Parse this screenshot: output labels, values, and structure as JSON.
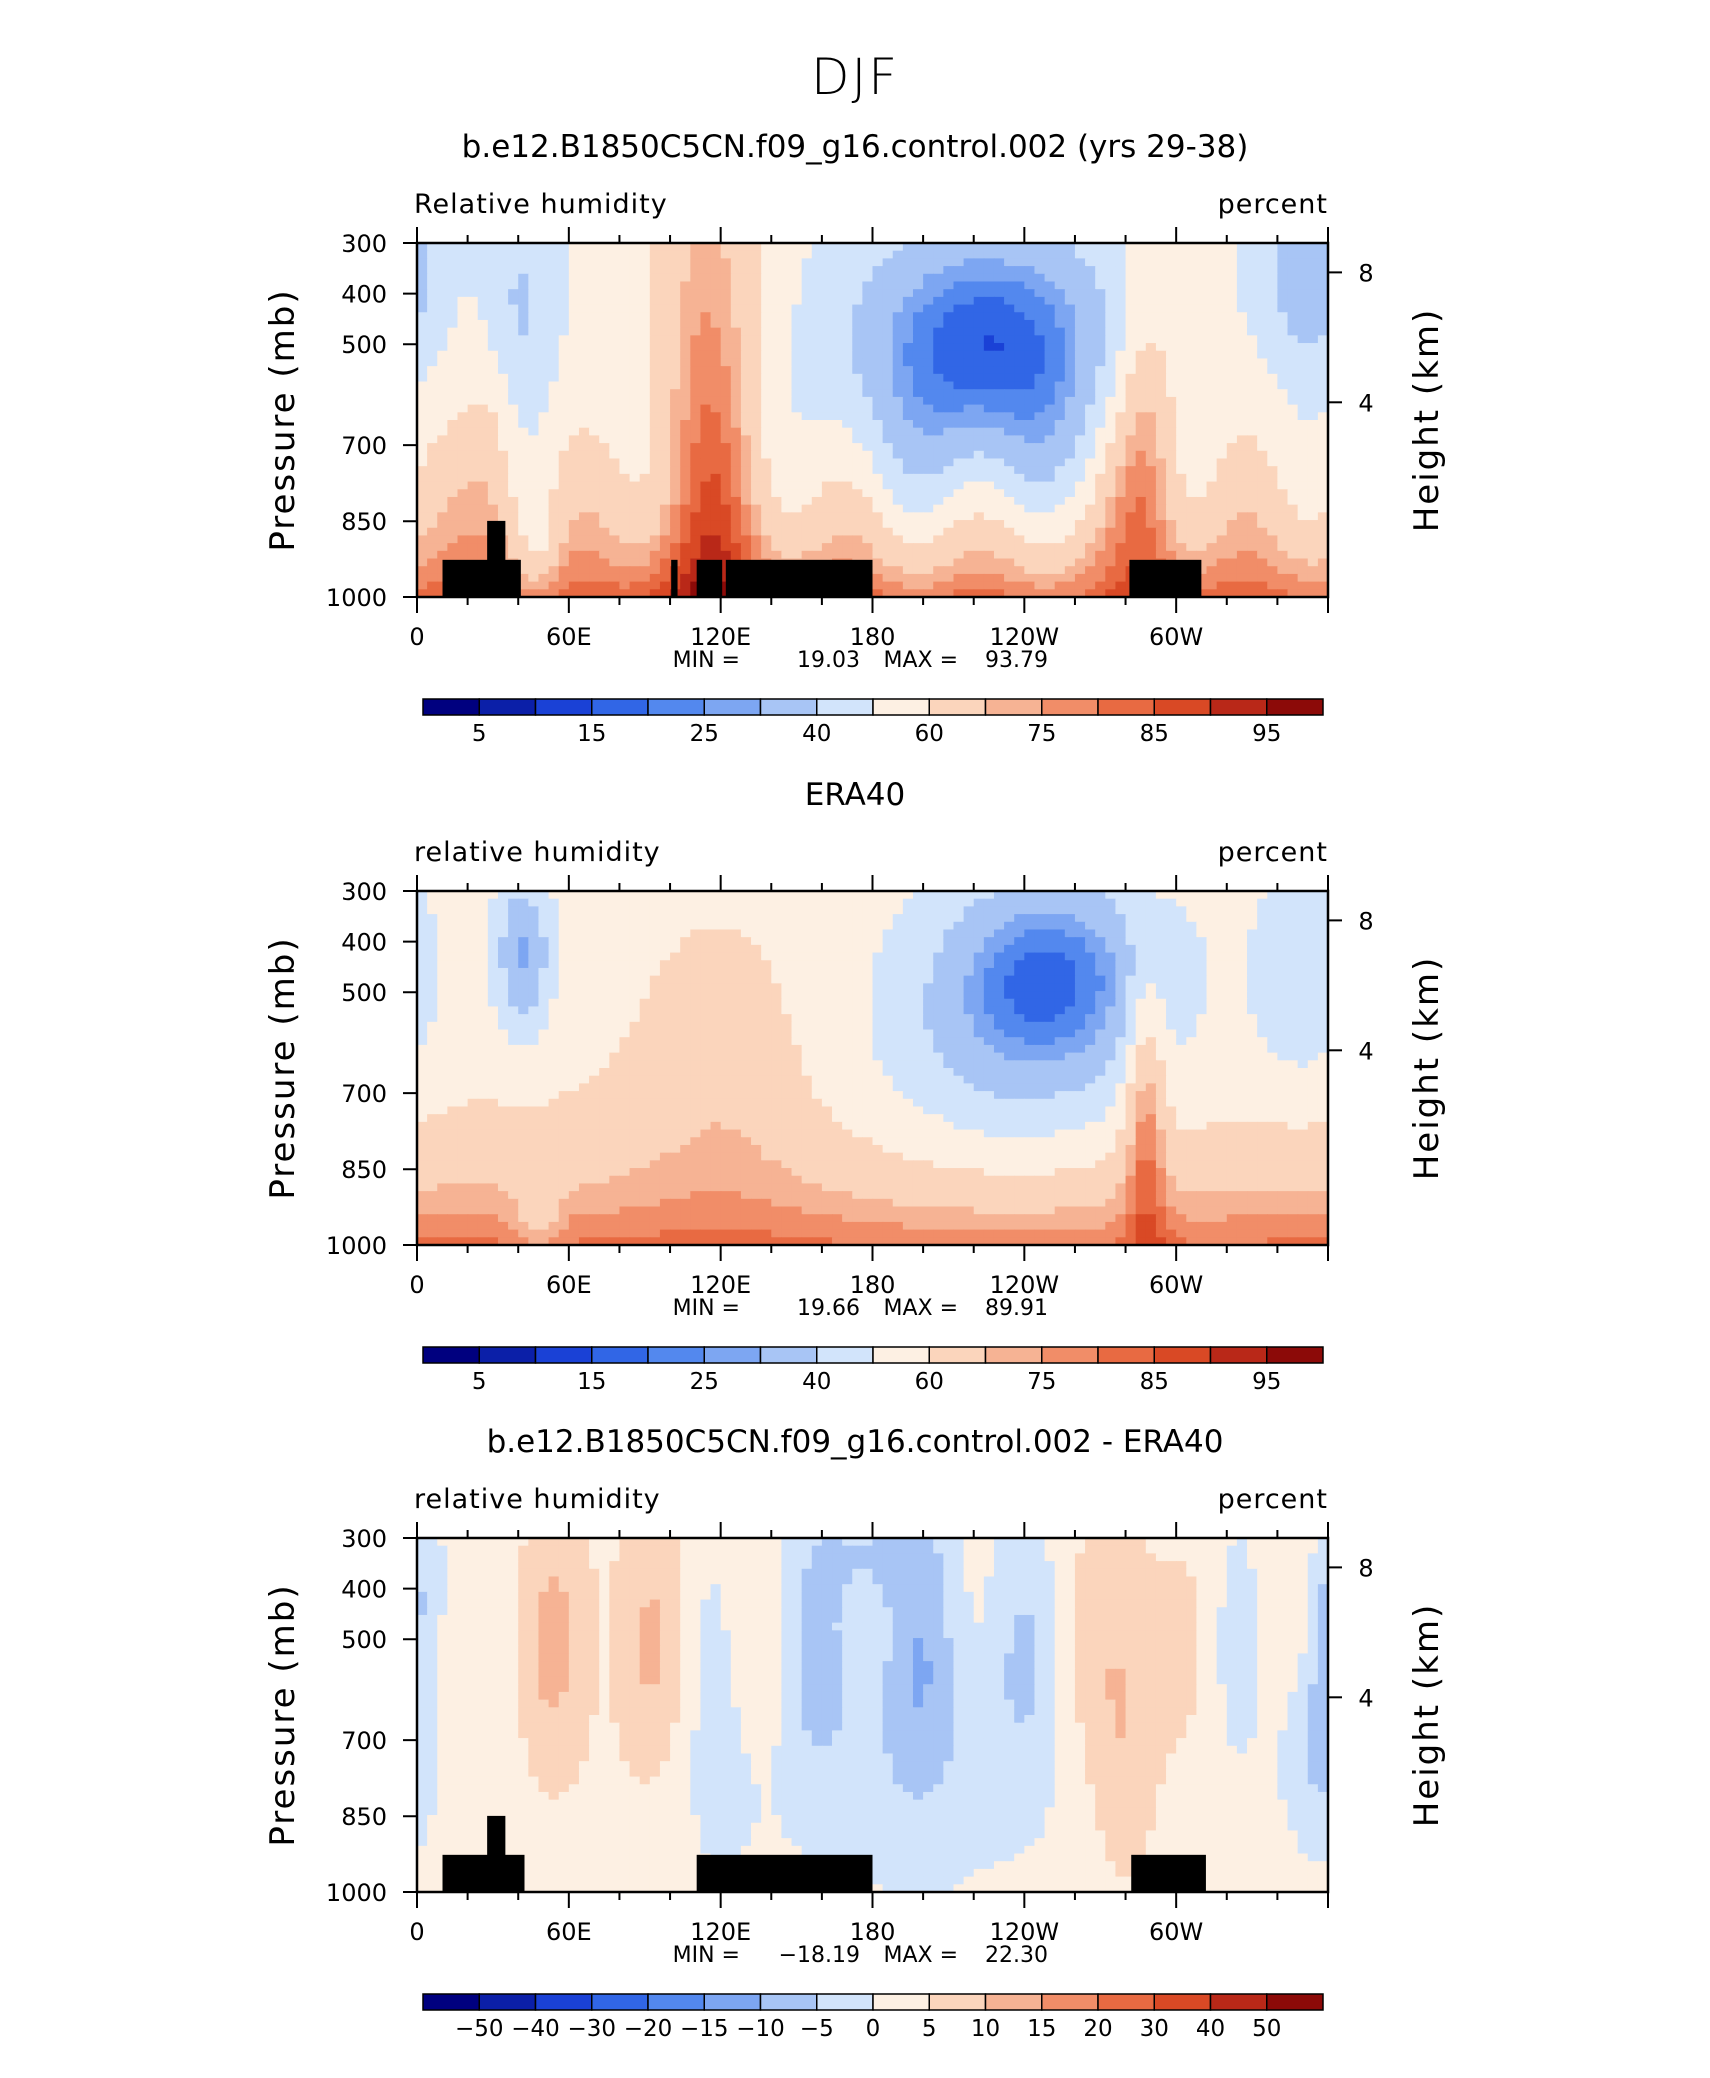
{
  "figure_title": "DJF",
  "colors": {
    "rh_scale": [
      "#00007f",
      "#0b1fa8",
      "#1a41d6",
      "#3166e6",
      "#5388ee",
      "#7da6f2",
      "#a8c5f5",
      "#d2e4fb",
      "#fdf0e3",
      "#fbd5bc",
      "#f6b394",
      "#f18d68",
      "#e86a42",
      "#d94925",
      "#b92818",
      "#8c0a08"
    ],
    "diff_scale": [
      "#00007f",
      "#0b1fa8",
      "#1a41d6",
      "#3166e6",
      "#5388ee",
      "#7da6f2",
      "#a8c5f5",
      "#d2e4fb",
      "#fdf0e3",
      "#fbd5bc",
      "#f6b394",
      "#f18d68",
      "#e86a42",
      "#d94925",
      "#b92818",
      "#8c0a08"
    ],
    "terrain": "#000000"
  },
  "chart_data": [
    {
      "type": "heatmap",
      "title": "b.e12.B1850C5CN.f09_g16.control.002 (yrs 29-38)",
      "left_label": "Relative  humidity",
      "right_label": "percent",
      "ylabel": "Pressure  (mb)",
      "y2label": "Height  (km)",
      "x_ticks": [
        "0",
        "60E",
        "120E",
        "180",
        "120W",
        "60W"
      ],
      "x_tick_lon": [
        0,
        60,
        120,
        180,
        240,
        300
      ],
      "xlim": [
        0,
        360
      ],
      "y_ticks": [
        "300",
        "400",
        "500",
        "700",
        "850",
        "1000"
      ],
      "y2_ticks": [
        "8",
        "4"
      ],
      "stats": {
        "min_label": "MIN =",
        "min": "19.03",
        "max_label": "MAX =",
        "max": "93.79"
      },
      "colorbar_labels": [
        "5",
        "15",
        "25",
        "40",
        "60",
        "75",
        "85",
        "95"
      ],
      "variant": "model",
      "terrain": true
    },
    {
      "type": "heatmap",
      "title": "ERA40",
      "left_label": "relative  humidity",
      "right_label": "percent",
      "ylabel": "Pressure  (mb)",
      "y2label": "Height  (km)",
      "x_ticks": [
        "0",
        "60E",
        "120E",
        "180",
        "120W",
        "60W"
      ],
      "x_tick_lon": [
        0,
        60,
        120,
        180,
        240,
        300
      ],
      "xlim": [
        0,
        360
      ],
      "y_ticks": [
        "300",
        "400",
        "500",
        "700",
        "850",
        "1000"
      ],
      "y2_ticks": [
        "8",
        "4"
      ],
      "stats": {
        "min_label": "MIN =",
        "min": "19.66",
        "max_label": "MAX =",
        "max": "89.91"
      },
      "colorbar_labels": [
        "5",
        "15",
        "25",
        "40",
        "60",
        "75",
        "85",
        "95"
      ],
      "variant": "obs",
      "terrain": false
    },
    {
      "type": "heatmap",
      "title": "b.e12.B1850C5CN.f09_g16.control.002 - ERA40",
      "left_label": "relative  humidity",
      "right_label": "percent",
      "ylabel": "Pressure  (mb)",
      "y2label": "Height  (km)",
      "x_ticks": [
        "0",
        "60E",
        "120E",
        "180",
        "120W",
        "60W"
      ],
      "x_tick_lon": [
        0,
        60,
        120,
        180,
        240,
        300
      ],
      "xlim": [
        0,
        360
      ],
      "y_ticks": [
        "300",
        "400",
        "500",
        "700",
        "850",
        "1000"
      ],
      "y2_ticks": [
        "8",
        "4"
      ],
      "stats": {
        "min_label": "MIN =",
        "min": "−18.19",
        "max_label": "MAX =",
        "max": "22.30"
      },
      "colorbar_labels": [
        "−50",
        "−40",
        "−30",
        "−20",
        "−15",
        "−10",
        "−5",
        "0",
        "5",
        "10",
        "15",
        "20",
        "30",
        "40",
        "50"
      ],
      "variant": "diff",
      "terrain": true
    }
  ]
}
